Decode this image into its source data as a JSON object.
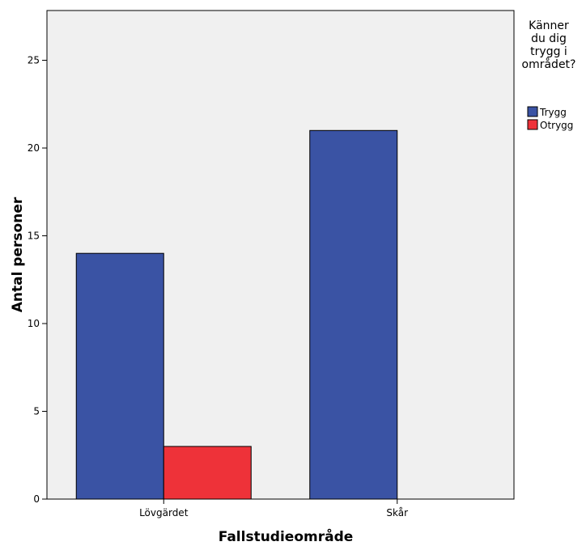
{
  "chart_data": {
    "type": "bar",
    "categories": [
      "Lövgärdet",
      "Skår"
    ],
    "series": [
      {
        "name": "Trygg",
        "values": [
          14,
          21
        ]
      },
      {
        "name": "Otrygg",
        "values": [
          3,
          0
        ]
      }
    ],
    "xlabel": "Fallstudieområde",
    "ylabel": "Antal personer",
    "ylim": [
      0,
      28
    ],
    "yticks": [
      0,
      5,
      10,
      15,
      20,
      25
    ],
    "legend": {
      "title_lines": [
        "Känner",
        "du dig",
        "trygg i",
        "området?"
      ],
      "placement": "right"
    },
    "grid": false,
    "colors": {
      "Trygg": "#3a53a4",
      "Otrygg": "#ee3239",
      "plot_background": "#f0f0f0"
    }
  }
}
